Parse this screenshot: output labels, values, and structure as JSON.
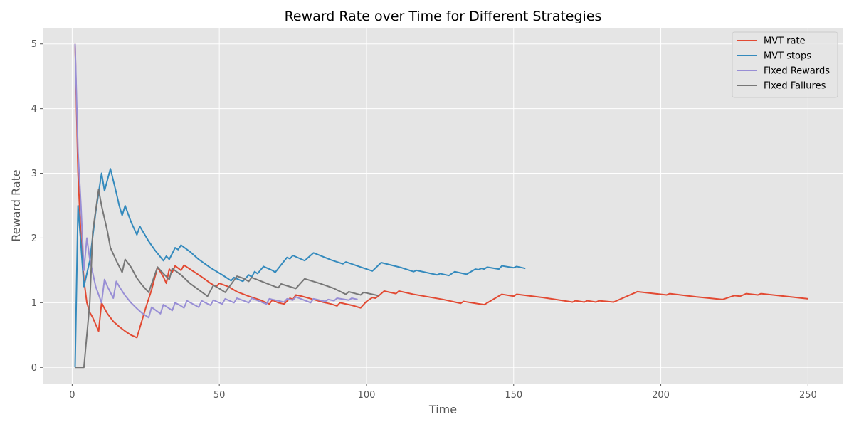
{
  "chart_data": {
    "type": "line",
    "title": "Reward Rate over Time for Different Strategies",
    "xlabel": "Time",
    "ylabel": "Reward Rate",
    "xlim": [
      -10,
      262
    ],
    "ylim": [
      -0.25,
      5.25
    ],
    "xticks": [
      0,
      50,
      100,
      150,
      200,
      250
    ],
    "yticks": [
      0,
      1,
      2,
      3,
      4,
      5
    ],
    "grid": true,
    "legend_position": "top-right",
    "series": [
      {
        "name": "MVT rate",
        "color": "#E24A33",
        "points": [
          [
            1,
            5.0
          ],
          [
            2,
            3.0
          ],
          [
            3,
            2.0
          ],
          [
            4,
            1.35
          ],
          [
            5,
            1.0
          ],
          [
            6,
            0.85
          ],
          [
            7,
            0.77
          ],
          [
            9,
            0.56
          ],
          [
            10,
            1.0
          ],
          [
            11,
            0.91
          ],
          [
            12,
            0.83
          ],
          [
            13,
            0.77
          ],
          [
            14,
            0.71
          ],
          [
            16,
            0.63
          ],
          [
            18,
            0.56
          ],
          [
            20,
            0.5
          ],
          [
            22,
            0.46
          ],
          [
            25,
            0.92
          ],
          [
            27,
            1.2
          ],
          [
            29,
            1.55
          ],
          [
            31,
            1.4
          ],
          [
            32,
            1.3
          ],
          [
            33,
            1.52
          ],
          [
            34,
            1.47
          ],
          [
            35,
            1.57
          ],
          [
            37,
            1.5
          ],
          [
            38,
            1.58
          ],
          [
            40,
            1.52
          ],
          [
            44,
            1.4
          ],
          [
            47,
            1.3
          ],
          [
            49,
            1.25
          ],
          [
            50,
            1.3
          ],
          [
            53,
            1.25
          ],
          [
            56,
            1.17
          ],
          [
            60,
            1.1
          ],
          [
            64,
            1.04
          ],
          [
            67,
            0.98
          ],
          [
            68,
            1.04
          ],
          [
            70,
            1.0
          ],
          [
            72,
            0.98
          ],
          [
            74,
            1.07
          ],
          [
            75,
            1.05
          ],
          [
            76,
            1.12
          ],
          [
            78,
            1.1
          ],
          [
            82,
            1.05
          ],
          [
            85,
            1.01
          ],
          [
            88,
            0.98
          ],
          [
            90,
            0.95
          ],
          [
            91,
            1.0
          ],
          [
            95,
            0.96
          ],
          [
            98,
            0.92
          ],
          [
            100,
            1.02
          ],
          [
            102,
            1.08
          ],
          [
            103,
            1.07
          ],
          [
            104,
            1.1
          ],
          [
            106,
            1.18
          ],
          [
            110,
            1.14
          ],
          [
            111,
            1.18
          ],
          [
            116,
            1.13
          ],
          [
            121,
            1.09
          ],
          [
            126,
            1.05
          ],
          [
            132,
            0.99
          ],
          [
            133,
            1.02
          ],
          [
            137,
            0.99
          ],
          [
            140,
            0.97
          ],
          [
            146,
            1.13
          ],
          [
            150,
            1.1
          ],
          [
            151,
            1.13
          ],
          [
            160,
            1.08
          ],
          [
            170,
            1.01
          ],
          [
            171,
            1.03
          ],
          [
            174,
            1.01
          ],
          [
            175,
            1.03
          ],
          [
            178,
            1.01
          ],
          [
            179,
            1.03
          ],
          [
            184,
            1.01
          ],
          [
            192,
            1.17
          ],
          [
            202,
            1.12
          ],
          [
            203,
            1.14
          ],
          [
            212,
            1.09
          ],
          [
            221,
            1.05
          ],
          [
            225,
            1.11
          ],
          [
            227,
            1.1
          ],
          [
            229,
            1.14
          ],
          [
            233,
            1.12
          ],
          [
            234,
            1.14
          ],
          [
            250,
            1.06
          ]
        ]
      },
      {
        "name": "MVT stops",
        "color": "#348ABD",
        "points": [
          [
            1,
            0
          ],
          [
            2,
            2.5
          ],
          [
            3,
            1.9
          ],
          [
            4,
            1.25
          ],
          [
            6,
            1.65
          ],
          [
            8,
            2.4
          ],
          [
            10,
            3.0
          ],
          [
            11,
            2.73
          ],
          [
            13,
            3.07
          ],
          [
            15,
            2.7
          ],
          [
            16,
            2.5
          ],
          [
            17,
            2.35
          ],
          [
            18,
            2.5
          ],
          [
            20,
            2.25
          ],
          [
            22,
            2.05
          ],
          [
            23,
            2.18
          ],
          [
            26,
            1.95
          ],
          [
            28,
            1.82
          ],
          [
            31,
            1.65
          ],
          [
            32,
            1.72
          ],
          [
            33,
            1.67
          ],
          [
            35,
            1.85
          ],
          [
            36,
            1.82
          ],
          [
            37,
            1.89
          ],
          [
            40,
            1.79
          ],
          [
            43,
            1.67
          ],
          [
            47,
            1.54
          ],
          [
            51,
            1.43
          ],
          [
            54,
            1.34
          ],
          [
            55,
            1.39
          ],
          [
            58,
            1.33
          ],
          [
            60,
            1.43
          ],
          [
            61,
            1.4
          ],
          [
            62,
            1.48
          ],
          [
            63,
            1.45
          ],
          [
            65,
            1.56
          ],
          [
            68,
            1.5
          ],
          [
            69,
            1.47
          ],
          [
            73,
            1.7
          ],
          [
            74,
            1.68
          ],
          [
            75,
            1.73
          ],
          [
            79,
            1.65
          ],
          [
            82,
            1.77
          ],
          [
            88,
            1.66
          ],
          [
            92,
            1.6
          ],
          [
            93,
            1.63
          ],
          [
            100,
            1.52
          ],
          [
            102,
            1.49
          ],
          [
            105,
            1.62
          ],
          [
            112,
            1.54
          ],
          [
            116,
            1.48
          ],
          [
            117,
            1.5
          ],
          [
            124,
            1.43
          ],
          [
            125,
            1.45
          ],
          [
            128,
            1.42
          ],
          [
            130,
            1.48
          ],
          [
            134,
            1.44
          ],
          [
            137,
            1.52
          ],
          [
            138,
            1.51
          ],
          [
            139,
            1.53
          ],
          [
            140,
            1.52
          ],
          [
            141,
            1.55
          ],
          [
            145,
            1.52
          ],
          [
            146,
            1.57
          ],
          [
            150,
            1.54
          ],
          [
            151,
            1.56
          ],
          [
            154,
            1.53
          ]
        ]
      },
      {
        "name": "Fixed Rewards",
        "color": "#988ED5",
        "points": [
          [
            1,
            5.0
          ],
          [
            2,
            3.33
          ],
          [
            3,
            2.5
          ],
          [
            4,
            1.5
          ],
          [
            5,
            2.0
          ],
          [
            6,
            1.67
          ],
          [
            8,
            1.25
          ],
          [
            10,
            1.0
          ],
          [
            11,
            1.36
          ],
          [
            12,
            1.25
          ],
          [
            14,
            1.07
          ],
          [
            15,
            1.33
          ],
          [
            16,
            1.25
          ],
          [
            18,
            1.11
          ],
          [
            20,
            1.0
          ],
          [
            22,
            0.91
          ],
          [
            24,
            0.83
          ],
          [
            26,
            0.77
          ],
          [
            27,
            0.93
          ],
          [
            30,
            0.83
          ],
          [
            31,
            0.97
          ],
          [
            34,
            0.88
          ],
          [
            35,
            1.0
          ],
          [
            37,
            0.95
          ],
          [
            38,
            0.92
          ],
          [
            39,
            1.03
          ],
          [
            43,
            0.93
          ],
          [
            44,
            1.03
          ],
          [
            47,
            0.96
          ],
          [
            48,
            1.04
          ],
          [
            51,
            0.98
          ],
          [
            52,
            1.06
          ],
          [
            55,
            1.0
          ],
          [
            56,
            1.07
          ],
          [
            60,
            1.0
          ],
          [
            61,
            1.07
          ],
          [
            66,
            0.98
          ],
          [
            67,
            1.06
          ],
          [
            72,
            1.01
          ],
          [
            73,
            1.06
          ],
          [
            75,
            1.04
          ],
          [
            76,
            1.09
          ],
          [
            81,
            1.0
          ],
          [
            82,
            1.06
          ],
          [
            86,
            1.02
          ],
          [
            87,
            1.05
          ],
          [
            89,
            1.03
          ],
          [
            90,
            1.07
          ],
          [
            94,
            1.04
          ],
          [
            95,
            1.07
          ],
          [
            97,
            1.05
          ]
        ]
      },
      {
        "name": "Fixed Failures",
        "color": "#777777",
        "points": [
          [
            1,
            0
          ],
          [
            4,
            0
          ],
          [
            6,
            1.0
          ],
          [
            7,
            2.1
          ],
          [
            9,
            2.75
          ],
          [
            10,
            2.5
          ],
          [
            12,
            2.1
          ],
          [
            13,
            1.85
          ],
          [
            15,
            1.65
          ],
          [
            17,
            1.47
          ],
          [
            18,
            1.67
          ],
          [
            20,
            1.55
          ],
          [
            22,
            1.38
          ],
          [
            24,
            1.26
          ],
          [
            26,
            1.16
          ],
          [
            29,
            1.55
          ],
          [
            31,
            1.45
          ],
          [
            33,
            1.36
          ],
          [
            34,
            1.53
          ],
          [
            37,
            1.43
          ],
          [
            40,
            1.3
          ],
          [
            43,
            1.2
          ],
          [
            46,
            1.1
          ],
          [
            48,
            1.27
          ],
          [
            50,
            1.22
          ],
          [
            52,
            1.16
          ],
          [
            56,
            1.41
          ],
          [
            58,
            1.38
          ],
          [
            60,
            1.33
          ],
          [
            61,
            1.39
          ],
          [
            66,
            1.3
          ],
          [
            70,
            1.23
          ],
          [
            71,
            1.29
          ],
          [
            76,
            1.22
          ],
          [
            79,
            1.37
          ],
          [
            84,
            1.3
          ],
          [
            89,
            1.22
          ],
          [
            93,
            1.13
          ],
          [
            94,
            1.17
          ],
          [
            98,
            1.12
          ],
          [
            99,
            1.16
          ],
          [
            104,
            1.11
          ]
        ]
      }
    ]
  }
}
